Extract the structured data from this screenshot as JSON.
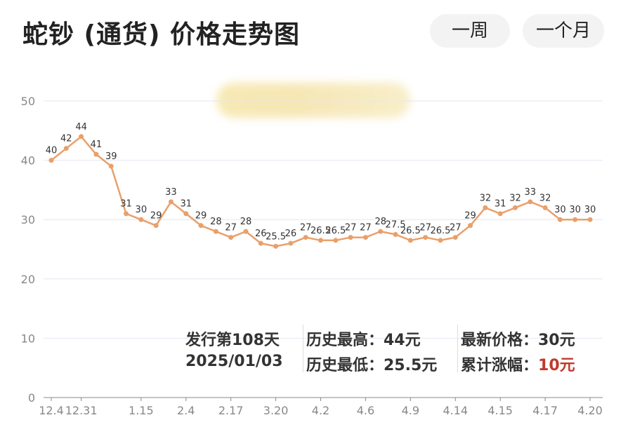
{
  "header": {
    "title": "蛇钞 (通货) 价格走势图",
    "buttons": [
      "一周",
      "一个月"
    ]
  },
  "info": {
    "issue_days": "发行第108天",
    "issue_date": "2025/01/03",
    "high": "历史最高：44元",
    "low": "历史最低：25.5元",
    "latest": "最新价格：30元",
    "change_label": "累计涨幅：",
    "change_value": "10元"
  },
  "colors": {
    "line": "#e9a06a",
    "change_value": "#c0392b",
    "grid": "#e6e6f2",
    "axis": "#888888"
  },
  "chart_data": {
    "type": "line",
    "title": "蛇钞 (通货) 价格走势图",
    "ylim": [
      0,
      50
    ],
    "yticks": [
      0,
      10,
      20,
      30,
      40,
      50
    ],
    "grid": true,
    "xtick_labels": [
      "12.4",
      "12.31",
      "1.15",
      "2.4",
      "2.17",
      "3.20",
      "4.2",
      "4.6",
      "4.9",
      "4.14",
      "4.15",
      "4.17",
      "4.20"
    ],
    "xtick_indices": [
      0,
      2,
      6,
      9,
      12,
      15,
      18,
      21,
      24,
      27,
      30,
      33,
      36
    ],
    "series": [
      {
        "values": [
          40,
          42,
          44,
          41,
          39,
          31,
          30,
          29,
          33,
          31,
          29,
          28,
          27,
          28,
          26,
          25.5,
          26,
          27,
          26.5,
          26.5,
          27,
          27,
          28,
          27.5,
          26.5,
          27,
          26.5,
          27,
          29,
          32,
          31,
          32,
          33,
          32,
          30,
          30,
          30
        ]
      }
    ]
  }
}
